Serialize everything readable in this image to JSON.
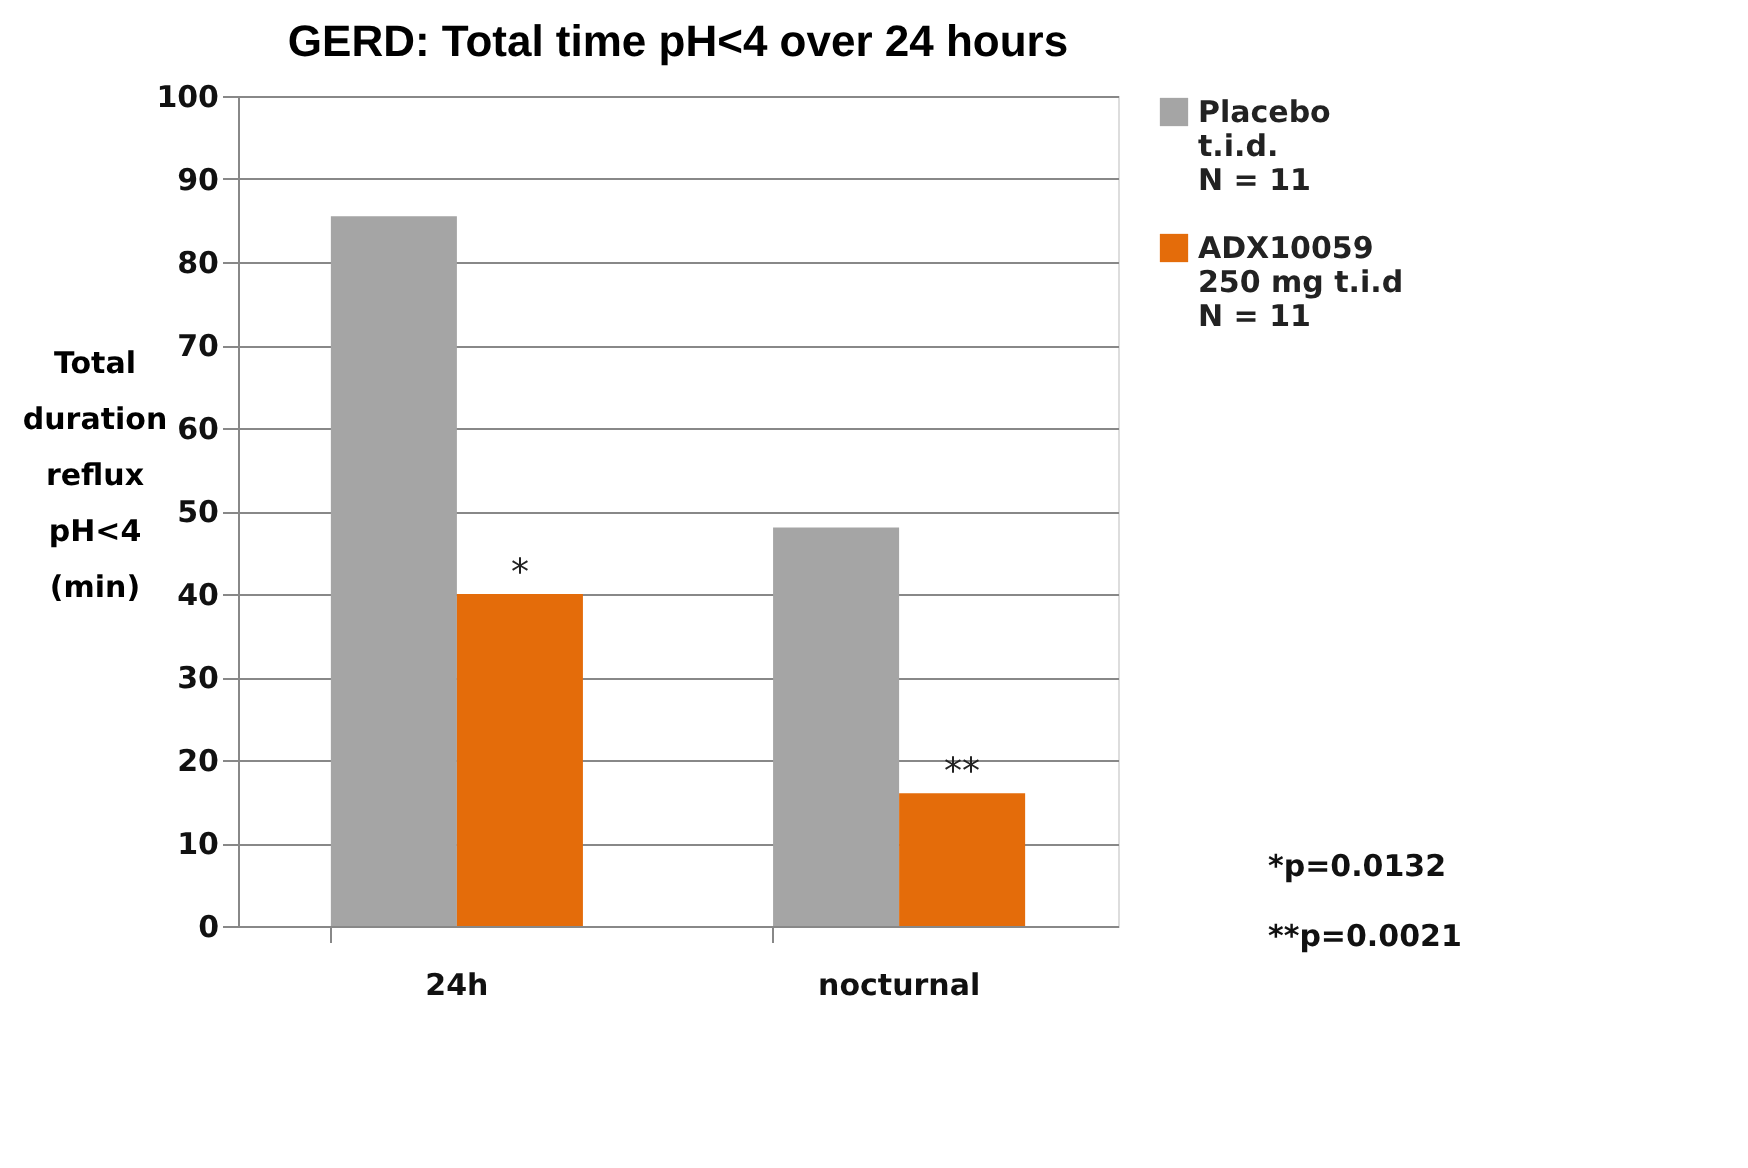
{
  "chart_data": {
    "type": "bar",
    "title": "GERD: Total time pH<4 over 24 hours",
    "ylabel": "Total\nduration\nreflux\npH<4\n(min)",
    "categories": [
      "24h",
      "nocturnal"
    ],
    "series": [
      {
        "name": "Placebo\nt.i.d.\nN = 11",
        "color": "#a5a5a5",
        "values": [
          85.5,
          48
        ]
      },
      {
        "name": "ADX10059\n250 mg t.i.d\nN = 11",
        "color": "#e46c0a",
        "values": [
          40,
          16
        ]
      }
    ],
    "ylim": [
      0,
      100
    ],
    "yticks": [
      0,
      10,
      20,
      30,
      40,
      50,
      60,
      70,
      80,
      90,
      100
    ],
    "grid": "y",
    "legend": "right",
    "annotations": [
      {
        "text": "*",
        "x": "24h",
        "y": 40
      },
      {
        "text": "**",
        "x": "nocturnal",
        "y": 16
      },
      "*p=0.0132",
      "**p=0.0021"
    ]
  }
}
